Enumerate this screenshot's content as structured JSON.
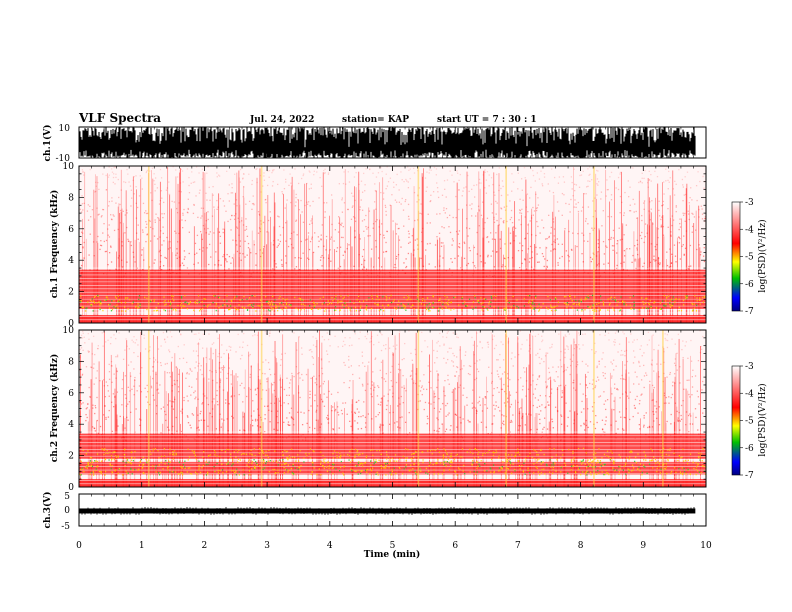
{
  "header": {
    "title": "VLF Spectra",
    "date": "Jul. 24, 2022",
    "station": "station= KAP",
    "start": "start UT = 7 : 30 : 1"
  },
  "chart_data": [
    {
      "type": "line",
      "name": "ch1-waveform",
      "ylabel": "ch.1(V)",
      "ylim": [
        -10,
        10
      ],
      "yticks": [
        "10",
        "-10"
      ],
      "xlim": [
        0,
        9.83
      ],
      "description_values": "saturated broadband waveform spanning roughly -10 to 10 V"
    },
    {
      "type": "heatmap",
      "name": "ch1-spectrogram",
      "ylabel": "ch.1 Frequency (kHz)",
      "ylim": [
        0,
        10
      ],
      "yticks": [
        "0",
        "2",
        "4",
        "6",
        "8",
        "10"
      ],
      "xlim": [
        0,
        10
      ],
      "colorbar": {
        "label": "log(PSD)(V²/Hz)",
        "range": [
          -7,
          -3
        ],
        "ticks": [
          "-3",
          "-4",
          "-5",
          "-6",
          "-7"
        ]
      },
      "bands_khz": [
        [
          0,
          0.5
        ],
        [
          0.9,
          1.6
        ],
        [
          1.6,
          3.4
        ]
      ],
      "bright_times_min": [
        1.1,
        2.9,
        5.4,
        6.8,
        8.2
      ]
    },
    {
      "type": "heatmap",
      "name": "ch2-spectrogram",
      "ylabel": "ch.2 Frequency (kHz)",
      "ylim": [
        0,
        10
      ],
      "yticks": [
        "0",
        "2",
        "4",
        "6",
        "8",
        "10"
      ],
      "xlim": [
        0,
        10
      ],
      "colorbar": {
        "label": "log(PSD)(V²/Hz)",
        "range": [
          -7,
          -3
        ],
        "ticks": [
          "-3",
          "-4",
          "-5",
          "-6",
          "-7"
        ]
      },
      "bands_khz": [
        [
          0,
          0.5
        ],
        [
          0.8,
          1.6
        ],
        [
          1.8,
          2.6
        ],
        [
          2.6,
          3.4
        ]
      ],
      "bright_times_min": [
        1.1,
        2.9,
        5.4,
        6.8,
        8.2,
        9.3
      ]
    },
    {
      "type": "line",
      "name": "ch3-waveform",
      "ylabel": "ch.3(V)",
      "ylim": [
        -5,
        5
      ],
      "yticks": [
        "5",
        "0",
        "-5"
      ],
      "level_v": -0.3,
      "xlim": [
        0,
        9.83
      ]
    }
  ],
  "xaxis": {
    "label": "Time (min)",
    "ticks": [
      "0",
      "1",
      "2",
      "3",
      "4",
      "5",
      "6",
      "7",
      "8",
      "9",
      "10"
    ]
  },
  "colors": {
    "colormap": [
      "#000080",
      "#0000ff",
      "#00c000",
      "#ffff00",
      "#ff0000",
      "#ffffff"
    ]
  }
}
